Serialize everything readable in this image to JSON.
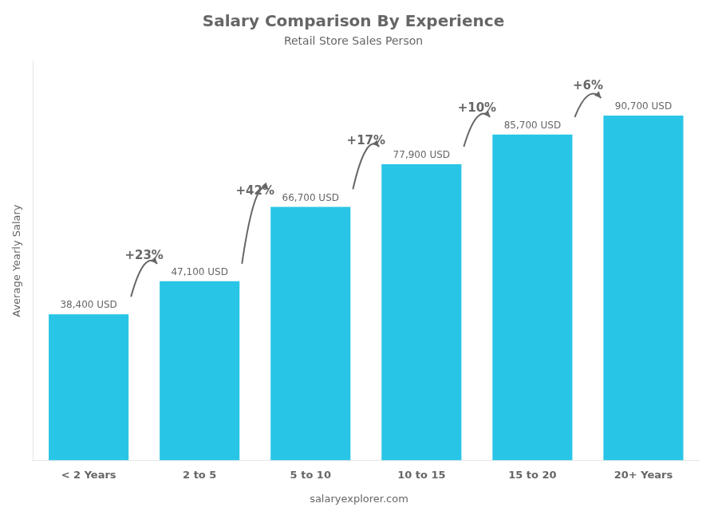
{
  "chart_data": {
    "type": "bar",
    "title": "Salary Comparison By Experience",
    "subtitle": "Retail Store Sales Person",
    "y_label": "Average Yearly Salary",
    "categories": [
      "< 2 Years",
      "2 to 5",
      "5 to 10",
      "10 to 15",
      "15 to 20",
      "20+ Years"
    ],
    "values": [
      38400,
      47100,
      66700,
      77900,
      85700,
      90700
    ],
    "value_labels": [
      "38,400 USD",
      "47,100 USD",
      "66,700 USD",
      "77,900 USD",
      "85,700 USD",
      "90,700 USD"
    ],
    "data_labels": true,
    "annotations": [
      "+23%",
      "+42%",
      "+17%",
      "+10%",
      "+6%"
    ],
    "footer": "salaryexplorer.com",
    "color": "#29c5e6",
    "ylim": [
      0,
      105000
    ],
    "tick_labels": "x",
    "grid": false
  }
}
